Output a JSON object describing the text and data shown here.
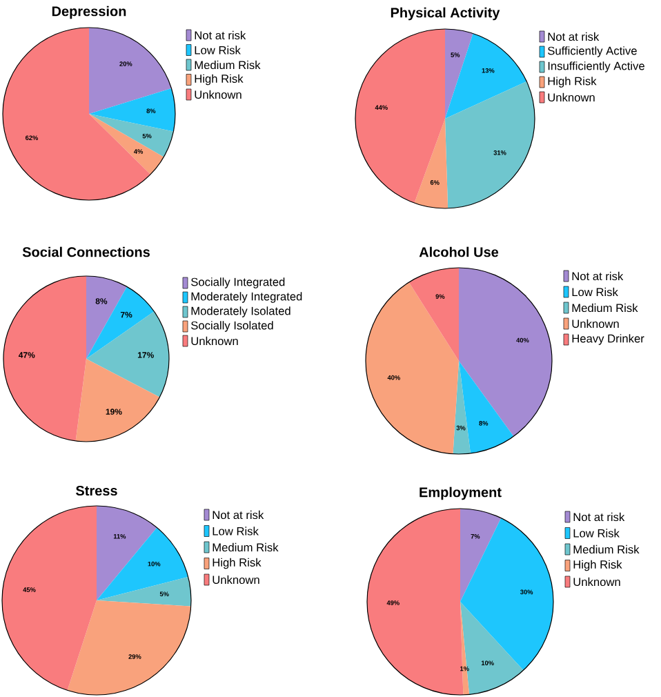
{
  "chart_data": [
    {
      "type": "pie",
      "title": "Depression",
      "categories": [
        "Not at risk",
        "Low Risk",
        "Medium Risk",
        "High Risk",
        "Unknown"
      ],
      "values": [
        20,
        8,
        5,
        4,
        62
      ],
      "value_labels": [
        "20%",
        "8%",
        "5%",
        "4%",
        "62%"
      ],
      "colors": [
        "#a48bd3",
        "#1ec6fd",
        "#6fc6ce",
        "#f9a27c",
        "#f97c7e"
      ],
      "legend": "right"
    },
    {
      "type": "pie",
      "title": "Physical Activity",
      "categories": [
        "Not at risk",
        "Sufficiently Active",
        "Insufficiently Active",
        "High Risk",
        "Unknown"
      ],
      "values": [
        5,
        13,
        31,
        6,
        44
      ],
      "value_labels": [
        "5%",
        "13%",
        "31%",
        "6%",
        "44%"
      ],
      "colors": [
        "#a48bd3",
        "#1ec6fd",
        "#6fc6ce",
        "#f9a27c",
        "#f97c7e"
      ],
      "legend": "right"
    },
    {
      "type": "pie",
      "title": "Social Connections",
      "categories": [
        "Socially Integrated",
        "Moderately Integrated",
        "Moderately Isolated",
        "Socially Isolated",
        "Unknown"
      ],
      "values": [
        8,
        7,
        17,
        19,
        47
      ],
      "value_labels": [
        "8%",
        "7%",
        "17%",
        "19%",
        "47%"
      ],
      "colors": [
        "#a48bd3",
        "#1ec6fd",
        "#6fc6ce",
        "#f9a27c",
        "#f97c7e"
      ],
      "legend": "right"
    },
    {
      "type": "pie",
      "title": "Alcohol Use",
      "categories": [
        "Not at risk",
        "Low Risk",
        "Medium Risk",
        "Unknown",
        "Heavy Drinker"
      ],
      "values": [
        40,
        8,
        3,
        40,
        9
      ],
      "value_labels": [
        "40%",
        "8%",
        "3%",
        "40%",
        "9%"
      ],
      "colors": [
        "#a48bd3",
        "#1ec6fd",
        "#6fc6ce",
        "#f9a27c",
        "#f97c7e"
      ],
      "legend": "right"
    },
    {
      "type": "pie",
      "title": "Stress",
      "categories": [
        "Not at risk",
        "Low Risk",
        "Medium Risk",
        "High Risk",
        "Unknown"
      ],
      "values": [
        11,
        10,
        5,
        29,
        45
      ],
      "value_labels": [
        "11%",
        "10%",
        "5%",
        "29%",
        "45%"
      ],
      "colors": [
        "#a48bd3",
        "#1ec6fd",
        "#6fc6ce",
        "#f9a27c",
        "#f97c7e"
      ],
      "legend": "right"
    },
    {
      "type": "pie",
      "title": "Employment",
      "categories": [
        "Not at risk",
        "Low Risk",
        "Medium Risk",
        "High Risk",
        "Unknown"
      ],
      "values": [
        7,
        30,
        10,
        1,
        49
      ],
      "value_labels": [
        "7%",
        "30%",
        "10%",
        "1%",
        "49%"
      ],
      "colors": [
        "#a48bd3",
        "#1ec6fd",
        "#6fc6ce",
        "#f9a27c",
        "#f97c7e"
      ],
      "legend": "right"
    }
  ]
}
